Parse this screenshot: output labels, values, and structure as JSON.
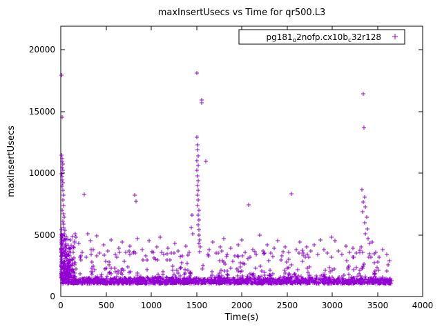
{
  "chart_data": {
    "type": "scatter",
    "title": "maxInsertUsecs vs Time for qr500.L3",
    "xlabel": "Time(s)",
    "ylabel": "maxInsertUsecs",
    "xlim": [
      0,
      4000
    ],
    "ylim": [
      0,
      21900
    ],
    "xticks": [
      0,
      500,
      1000,
      1500,
      2000,
      2500,
      3000,
      3500,
      4000
    ],
    "yticks": [
      0,
      5000,
      10000,
      15000,
      20000
    ],
    "grid": false,
    "marker": "plus",
    "marker_color": "#9400d3",
    "axis_color": "#000000",
    "background_color": "#ffffff",
    "legend": {
      "position": "top-right-inside",
      "box": true,
      "series": [
        {
          "label_plain": "pg181o2nofp.cx10bc32r128",
          "label_parts": [
            {
              "text": "pg181",
              "sub": false
            },
            {
              "text": "o",
              "sub": true
            },
            {
              "text": "2nofp.cx10b",
              "sub": false
            },
            {
              "text": "c",
              "sub": true
            },
            {
              "text": "32r128",
              "sub": false
            }
          ],
          "marker": "plus",
          "color": "#9400d3"
        }
      ]
    },
    "points_notable": [
      [
        8,
        17950
      ],
      [
        14,
        14550
      ],
      [
        10,
        11450
      ],
      [
        16,
        11200
      ],
      [
        12,
        10950
      ],
      [
        20,
        10700
      ],
      [
        15,
        10450
      ],
      [
        22,
        10200
      ],
      [
        11,
        9950
      ],
      [
        18,
        9700
      ],
      [
        13,
        9450
      ],
      [
        24,
        9200
      ],
      [
        17,
        8950
      ],
      [
        26,
        8600
      ],
      [
        30,
        8200
      ],
      [
        21,
        7800
      ],
      [
        34,
        7400
      ],
      [
        19,
        7000
      ],
      [
        28,
        6700
      ],
      [
        38,
        6400
      ],
      [
        23,
        6100
      ],
      [
        32,
        5850
      ],
      [
        27,
        5600
      ],
      [
        42,
        5350
      ],
      [
        36,
        5100
      ],
      [
        25,
        4900
      ],
      [
        48,
        4700
      ],
      [
        33,
        4500
      ],
      [
        55,
        4300
      ],
      [
        44,
        4100
      ],
      [
        60,
        3900
      ],
      [
        52,
        3700
      ],
      [
        40,
        3550
      ],
      [
        70,
        3400
      ],
      [
        65,
        3250
      ],
      [
        58,
        3100
      ],
      [
        80,
        2950
      ],
      [
        90,
        2820
      ],
      [
        75,
        2700
      ],
      [
        100,
        2580
      ],
      [
        110,
        2460
      ],
      [
        95,
        2340
      ],
      [
        120,
        2230
      ],
      [
        130,
        2120
      ],
      [
        140,
        2020
      ],
      [
        6,
        5400
      ],
      [
        7,
        4600
      ],
      [
        5,
        3900
      ],
      [
        9,
        3300
      ],
      [
        170,
        4800
      ],
      [
        200,
        4300
      ],
      [
        260,
        8250
      ],
      [
        240,
        3600
      ],
      [
        300,
        5100
      ],
      [
        330,
        4500
      ],
      [
        360,
        3800
      ],
      [
        400,
        4900
      ],
      [
        430,
        3500
      ],
      [
        470,
        4200
      ],
      [
        520,
        3700
      ],
      [
        560,
        4600
      ],
      [
        600,
        3400
      ],
      [
        640,
        3900
      ],
      [
        680,
        4400
      ],
      [
        720,
        3600
      ],
      [
        760,
        4100
      ],
      [
        820,
        8200
      ],
      [
        830,
        7700
      ],
      [
        800,
        3500
      ],
      [
        850,
        4700
      ],
      [
        900,
        3800
      ],
      [
        940,
        3300
      ],
      [
        980,
        4500
      ],
      [
        1020,
        3600
      ],
      [
        1060,
        4000
      ],
      [
        1100,
        4800
      ],
      [
        1140,
        3400
      ],
      [
        1180,
        3900
      ],
      [
        1220,
        3500
      ],
      [
        1260,
        4300
      ],
      [
        1300,
        3700
      ],
      [
        1340,
        3300
      ],
      [
        1380,
        4100
      ],
      [
        1420,
        3600
      ],
      [
        1440,
        5600
      ],
      [
        1450,
        6600
      ],
      [
        1460,
        5100
      ],
      [
        1505,
        18100
      ],
      [
        1555,
        15950
      ],
      [
        1560,
        15700
      ],
      [
        1500,
        12900
      ],
      [
        1508,
        12300
      ],
      [
        1512,
        11900
      ],
      [
        1518,
        11400
      ],
      [
        1503,
        11000
      ],
      [
        1520,
        10600
      ],
      [
        1507,
        10200
      ],
      [
        1513,
        9800
      ],
      [
        1516,
        9400
      ],
      [
        1509,
        9000
      ],
      [
        1522,
        8600
      ],
      [
        1511,
        8200
      ],
      [
        1519,
        7800
      ],
      [
        1514,
        7400
      ],
      [
        1525,
        7000
      ],
      [
        1517,
        6600
      ],
      [
        1528,
        6200
      ],
      [
        1521,
        5800
      ],
      [
        1530,
        5400
      ],
      [
        1524,
        5000
      ],
      [
        1535,
        4600
      ],
      [
        1527,
        4300
      ],
      [
        1540,
        4000
      ],
      [
        1600,
        10950
      ],
      [
        1640,
        3800
      ],
      [
        1680,
        4400
      ],
      [
        1720,
        3500
      ],
      [
        1760,
        4000
      ],
      [
        1800,
        4700
      ],
      [
        1840,
        3400
      ],
      [
        1880,
        3900
      ],
      [
        1920,
        3300
      ],
      [
        1960,
        4200
      ],
      [
        2000,
        4600
      ],
      [
        2040,
        3600
      ],
      [
        2080,
        7450
      ],
      [
        2120,
        3800
      ],
      [
        2160,
        3400
      ],
      [
        2200,
        5000
      ],
      [
        2240,
        3700
      ],
      [
        2280,
        4200
      ],
      [
        2320,
        3500
      ],
      [
        2360,
        3900
      ],
      [
        2400,
        4500
      ],
      [
        2440,
        3300
      ],
      [
        2480,
        4000
      ],
      [
        2520,
        3600
      ],
      [
        2550,
        8300
      ],
      [
        2600,
        3800
      ],
      [
        2640,
        4400
      ],
      [
        2680,
        3500
      ],
      [
        2720,
        4000
      ],
      [
        2760,
        3700
      ],
      [
        2800,
        4200
      ],
      [
        2840,
        3400
      ],
      [
        2870,
        4600
      ],
      [
        2910,
        3800
      ],
      [
        2950,
        3500
      ],
      [
        2990,
        4800
      ],
      [
        3030,
        4500
      ],
      [
        3070,
        3700
      ],
      [
        3110,
        3400
      ],
      [
        3150,
        4100
      ],
      [
        3190,
        3600
      ],
      [
        3230,
        3900
      ],
      [
        3270,
        3500
      ],
      [
        3340,
        16400
      ],
      [
        3350,
        13700
      ],
      [
        3330,
        8650
      ],
      [
        3360,
        8050
      ],
      [
        3345,
        7650
      ],
      [
        3370,
        7250
      ],
      [
        3335,
        6850
      ],
      [
        3380,
        6400
      ],
      [
        3355,
        5950
      ],
      [
        3390,
        5500
      ],
      [
        3365,
        5100
      ],
      [
        3400,
        4700
      ],
      [
        3410,
        4300
      ],
      [
        3320,
        4000
      ],
      [
        3440,
        4400
      ],
      [
        3480,
        3600
      ],
      [
        3520,
        3200
      ],
      [
        3560,
        3800
      ],
      [
        3600,
        3400
      ],
      [
        3630,
        2900
      ]
    ],
    "point_cloud": {
      "seed": 42,
      "bands": [
        {
          "name": "baseline-dense",
          "count": 1500,
          "x_min": 10,
          "x_max": 3655,
          "x_skew": 1,
          "y_min": 1080,
          "y_spread": 380,
          "skew": 1.8
        },
        {
          "name": "mid-scatter",
          "count": 330,
          "x_min": 10,
          "x_max": 3655,
          "x_skew": 1,
          "y_min": 1500,
          "y_spread": 2300,
          "skew": 2.6
        },
        {
          "name": "early-dense",
          "count": 170,
          "x_min": 4,
          "x_max": 160,
          "x_skew": 2,
          "y_min": 1500,
          "y_spread": 3600,
          "skew": 1.6
        }
      ]
    }
  }
}
